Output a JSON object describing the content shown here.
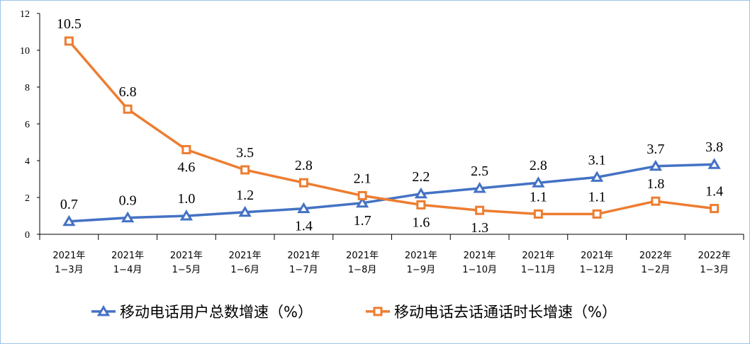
{
  "chart_data": {
    "type": "line",
    "categories": [
      [
        "2021年",
        "1−3月"
      ],
      [
        "2021年",
        "1−4月"
      ],
      [
        "2021年",
        "1−5月"
      ],
      [
        "2021年",
        "1−6月"
      ],
      [
        "2021年",
        "1−7月"
      ],
      [
        "2021年",
        "1−8月"
      ],
      [
        "2021年",
        "1−9月"
      ],
      [
        "2021年",
        "1−10月"
      ],
      [
        "2021年",
        "1−11月"
      ],
      [
        "2021年",
        "1−12月"
      ],
      [
        "2022年",
        "1−2月"
      ],
      [
        "2022年",
        "1−3月"
      ]
    ],
    "series": [
      {
        "name": "移动电话用户总数增速（%）",
        "color": "#4472c4",
        "marker": "triangle",
        "values": [
          0.7,
          0.9,
          1.0,
          1.2,
          1.4,
          1.7,
          2.2,
          2.5,
          2.8,
          3.1,
          3.7,
          3.8
        ]
      },
      {
        "name": "移动电话去话通话时长增速（%）",
        "color": "#ed7d31",
        "marker": "square",
        "values": [
          10.5,
          6.8,
          4.6,
          3.5,
          2.8,
          2.1,
          1.6,
          1.3,
          1.1,
          1.1,
          1.8,
          1.4
        ]
      }
    ],
    "ylim": [
      0,
      12
    ],
    "yticks": [
      0,
      2,
      4,
      6,
      8,
      10,
      12
    ],
    "grid": false,
    "legend": "bottom"
  }
}
